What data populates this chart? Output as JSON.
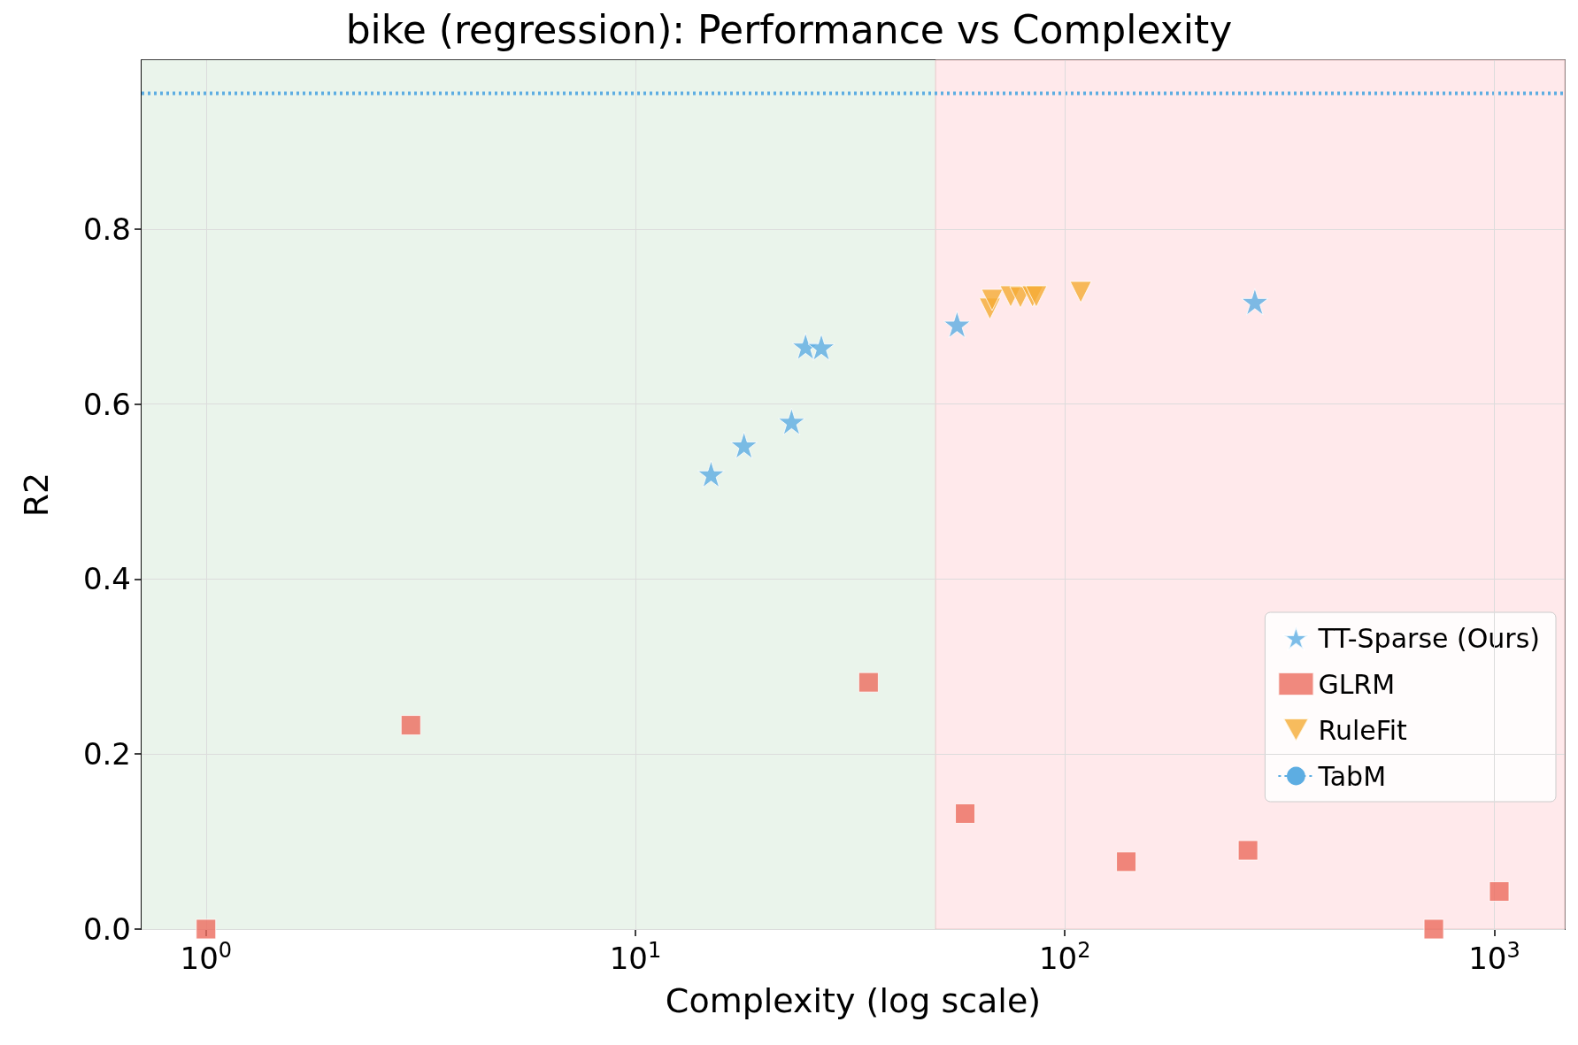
{
  "chart_data": {
    "type": "scatter",
    "title": "bike (regression): Performance vs Complexity",
    "xlabel": "Complexity (log scale)",
    "ylabel": "R2",
    "log": "x",
    "grid": true,
    "legend": "bottom right",
    "xlim": [
      0.708,
      1459
    ],
    "ylim": [
      0,
      0.993
    ],
    "xticks": [
      {
        "value": 1,
        "label": "10$^{0}$"
      },
      {
        "value": 10,
        "label": "10$^{1}$"
      },
      {
        "value": 100,
        "label": "10$^{2}$"
      },
      {
        "value": 1000,
        "label": "10$^{3}$"
      }
    ],
    "yticks": [
      {
        "value": 0,
        "label": "0.0"
      },
      0.2,
      0.4,
      0.6,
      0.8
    ],
    "series": [
      {
        "name": "TT-Sparse (Ours)",
        "color": "#5dade2",
        "marker": "star",
        "x": [
          15.0,
          17.9,
          23.1,
          24.9,
          27.1,
          56.1,
          277
        ],
        "values": [
          0.52,
          0.553,
          0.58,
          0.666,
          0.665,
          0.691,
          0.717
        ]
      },
      {
        "name": "GLRM",
        "color": "#ec6b5e",
        "marker": "square",
        "x": [
          1,
          3.0,
          34.9,
          58.6,
          139,
          267,
          1027,
          723
        ],
        "values": [
          0.0,
          0.233,
          0.282,
          0.132,
          0.077,
          0.09,
          0.043,
          0.0
        ]
      },
      {
        "name": "RuleFit",
        "color": "#f5ab35",
        "marker": "triangle",
        "x": [
          66.9,
          67.7,
          74.8,
          78.8,
          84.1,
          85.8,
          108.9
        ],
        "values": [
          0.709,
          0.719,
          0.723,
          0.722,
          0.723,
          0.723,
          0.728
        ]
      }
    ],
    "ref_lines": [
      {
        "axis": "y",
        "value": 0.955,
        "label": "TabM",
        "color": "#5dade2",
        "line_style": "dotted"
      }
    ],
    "bands": [
      {
        "axis": "x",
        "from": 0.708,
        "to": 50,
        "color": "#eaf4eb"
      },
      {
        "axis": "x",
        "from": 50,
        "to": 1459,
        "color": "#ffe9eb"
      }
    ]
  }
}
